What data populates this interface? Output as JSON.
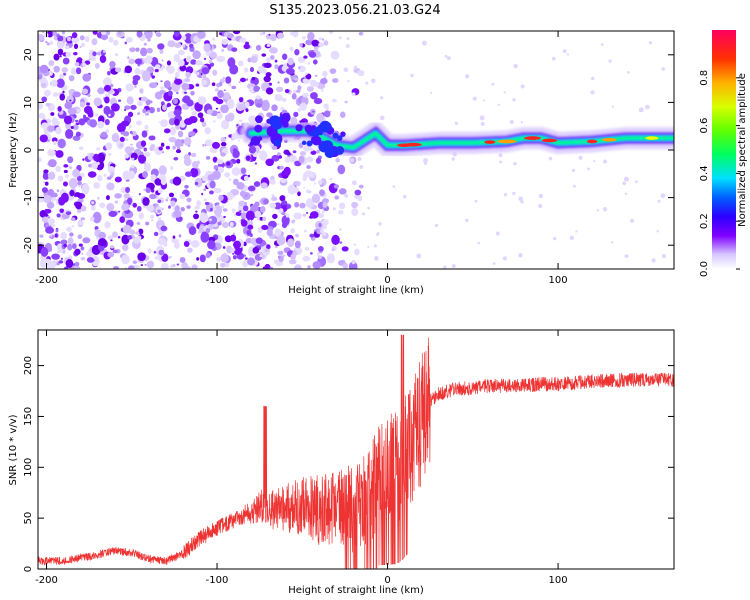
{
  "figure": {
    "title": "S135.2023.056.21.03.G24"
  },
  "chart_data": [
    {
      "type": "heatmap",
      "xlabel": "Height of straight line (km)",
      "ylabel": "Frequency (Hz)",
      "xlim": [
        -205,
        168
      ],
      "ylim": [
        -25,
        25
      ],
      "xticks": [
        -200,
        -100,
        0,
        100
      ],
      "yticks": [
        -20,
        -10,
        0,
        10,
        20
      ],
      "colorbar": {
        "label": "Normalized spectral amplitude",
        "range": [
          0,
          1
        ],
        "ticks": [
          "0.0",
          "0.2",
          "0.4",
          "0.6",
          "0.8"
        ],
        "tick_values": [
          0.0,
          0.2,
          0.4,
          0.6,
          0.8
        ],
        "colormap": "rainbow (violet to red)"
      },
      "noise_region": {
        "x_range": [
          -205,
          -35
        ],
        "freq_range": [
          -25,
          25
        ],
        "amplitude": "low (~0.1-0.3)"
      },
      "signal_track": [
        {
          "x": -80,
          "f": 3.5
        },
        {
          "x": -60,
          "f": 4
        },
        {
          "x": -45,
          "f": 4
        },
        {
          "x": -30,
          "f": 1
        },
        {
          "x": -20,
          "f": 0.5
        },
        {
          "x": -7,
          "f": 3.5
        },
        {
          "x": 0,
          "f": 1
        },
        {
          "x": 10,
          "f": 1
        },
        {
          "x": 30,
          "f": 1.5
        },
        {
          "x": 50,
          "f": 1.5
        },
        {
          "x": 70,
          "f": 1.8
        },
        {
          "x": 80,
          "f": 2.5
        },
        {
          "x": 90,
          "f": 2.5
        },
        {
          "x": 100,
          "f": 1.5
        },
        {
          "x": 120,
          "f": 1.8
        },
        {
          "x": 140,
          "f": 2.5
        },
        {
          "x": 168,
          "f": 2.5
        }
      ]
    },
    {
      "type": "line",
      "xlabel": "Height of straight line (km)",
      "ylabel": "SNR (10 * v/v)",
      "xlim": [
        -205,
        168
      ],
      "ylim": [
        0,
        235
      ],
      "xticks": [
        -200,
        -100,
        0,
        100
      ],
      "yticks": [
        0,
        50,
        100,
        150,
        200
      ],
      "color": "#ee3333",
      "series": [
        {
          "x": [
            -205,
            -190,
            -175,
            -160,
            -150,
            -140,
            -130,
            -120,
            -110,
            -100,
            -90,
            -80,
            -74,
            -70,
            -60,
            -50,
            -40,
            -30,
            -20,
            -15,
            -10,
            -5,
            0,
            5,
            9,
            15,
            20,
            25,
            30,
            40,
            50,
            60,
            70,
            80,
            90,
            100,
            110,
            120,
            130,
            140,
            150,
            160,
            168
          ],
          "y": [
            8,
            8,
            12,
            18,
            16,
            10,
            8,
            15,
            30,
            40,
            48,
            55,
            62,
            58,
            60,
            62,
            58,
            55,
            62,
            68,
            75,
            90,
            95,
            100,
            108,
            125,
            150,
            165,
            172,
            177,
            178,
            180,
            180,
            180,
            182,
            182,
            183,
            185,
            185,
            186,
            186,
            186,
            186
          ]
        }
      ]
    }
  ]
}
